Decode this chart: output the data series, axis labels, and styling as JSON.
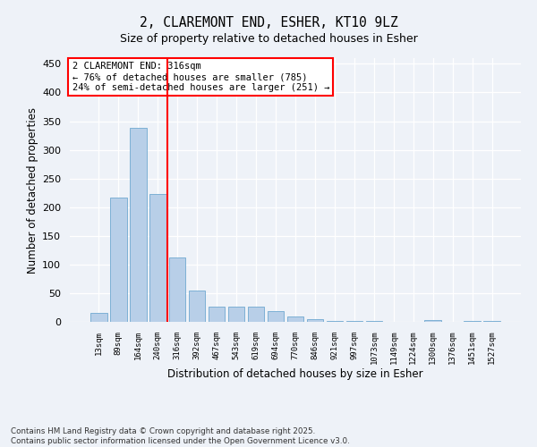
{
  "title1": "2, CLAREMONT END, ESHER, KT10 9LZ",
  "title2": "Size of property relative to detached houses in Esher",
  "xlabel": "Distribution of detached houses by size in Esher",
  "ylabel": "Number of detached properties",
  "categories": [
    "13sqm",
    "89sqm",
    "164sqm",
    "240sqm",
    "316sqm",
    "392sqm",
    "467sqm",
    "543sqm",
    "619sqm",
    "694sqm",
    "770sqm",
    "846sqm",
    "921sqm",
    "997sqm",
    "1073sqm",
    "1149sqm",
    "1224sqm",
    "1300sqm",
    "1376sqm",
    "1451sqm",
    "1527sqm"
  ],
  "values": [
    15,
    216,
    339,
    223,
    113,
    54,
    27,
    26,
    26,
    18,
    9,
    5,
    2,
    1,
    1,
    0,
    0,
    3,
    0,
    2,
    2
  ],
  "bar_color": "#b8cfe8",
  "bar_edge_color": "#6fa8d0",
  "vline_index": 4,
  "vline_color": "red",
  "annotation_text": "2 CLAREMONT END: 316sqm\n← 76% of detached houses are smaller (785)\n24% of semi-detached houses are larger (251) →",
  "ylim": [
    0,
    460
  ],
  "yticks": [
    0,
    50,
    100,
    150,
    200,
    250,
    300,
    350,
    400,
    450
  ],
  "background_color": "#eef2f8",
  "grid_color": "white",
  "footer": "Contains HM Land Registry data © Crown copyright and database right 2025.\nContains public sector information licensed under the Open Government Licence v3.0."
}
